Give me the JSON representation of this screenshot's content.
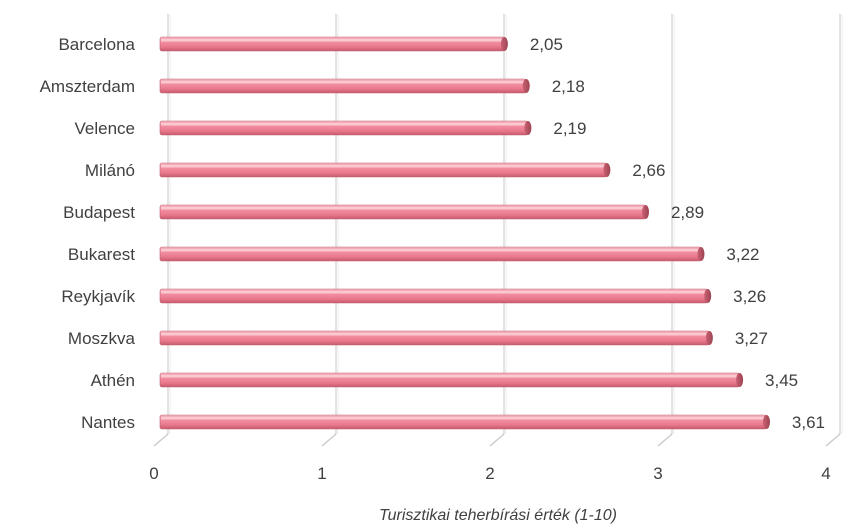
{
  "chart_data": {
    "type": "bar",
    "orientation": "horizontal",
    "categories": [
      "Barcelona",
      "Amszterdam",
      "Velence",
      "Milánó",
      "Budapest",
      "Bukarest",
      "Reykjavík",
      "Moszkva",
      "Athén",
      "Nantes"
    ],
    "values": [
      2.05,
      2.18,
      2.19,
      2.66,
      2.89,
      3.22,
      3.26,
      3.27,
      3.45,
      3.61
    ],
    "value_labels": [
      "2,05",
      "2,18",
      "2,19",
      "2,66",
      "2,89",
      "3,22",
      "3,26",
      "3,27",
      "3,45",
      "3,61"
    ],
    "xlabel": "Turisztikai teherbírási érték (1-10)",
    "ylabel": "",
    "xlim": [
      0,
      4
    ],
    "xticks": [
      "0",
      "1",
      "2",
      "3",
      "4"
    ],
    "grid": true,
    "bar_color": "#ee8a9c",
    "bar_edge_color": "#c0606f"
  }
}
